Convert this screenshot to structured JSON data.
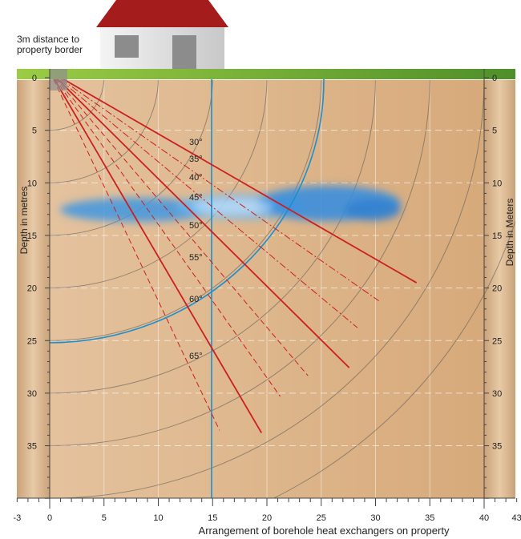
{
  "annotation": {
    "line1": "3m distance to",
    "line2": "property border"
  },
  "axis": {
    "x_label": "Arrangement of borehole heat exchangers on property",
    "y_label_left": "Depth in metres",
    "y_label_right": "Depth in Meters",
    "x_ticks": [
      "-3",
      "0",
      "5",
      "10",
      "15",
      "20",
      "25",
      "30",
      "35",
      "40",
      "43"
    ],
    "depth_ticks": [
      "0",
      "5",
      "10",
      "15",
      "20",
      "25",
      "30",
      "35"
    ]
  },
  "angles": [
    {
      "label": "30°",
      "deg": 30,
      "length": 39
    },
    {
      "label": "35°",
      "deg": 35,
      "length": 37,
      "style": "dashdot"
    },
    {
      "label": "40°",
      "deg": 40,
      "length": 37,
      "style": "dashdot"
    },
    {
      "label": "45°",
      "deg": 45,
      "length": 39
    },
    {
      "label": "50°",
      "deg": 50,
      "length": 37,
      "style": "dashed"
    },
    {
      "label": "55°",
      "deg": 55,
      "length": 37,
      "style": "dashed"
    },
    {
      "label": "60°",
      "deg": 60,
      "length": 39
    },
    {
      "label": "65°",
      "deg": 65,
      "length": 37,
      "style": "dashed"
    }
  ],
  "colors": {
    "soil": "#ddb48a",
    "grass": "#8cc63f",
    "bore_line": "#cc1f1f",
    "boundary_line": "#1a8fd1",
    "aquifer": "#4aa3e8",
    "roof": "#a31f1f",
    "wall": "#e6e6e6"
  }
}
